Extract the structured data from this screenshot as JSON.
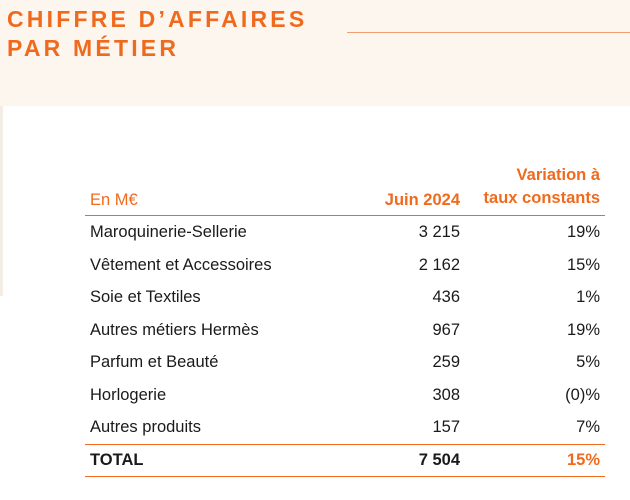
{
  "title": {
    "line1": "CHIFFRE D’AFFAIRES",
    "line2": "PAR MÉTIER"
  },
  "table": {
    "headers": {
      "unit": "En M€",
      "period": "Juin 2024",
      "variation_line1": "Variation à",
      "variation_line2": "taux constants"
    },
    "rows": [
      {
        "label": "Maroquinerie-Sellerie",
        "value": "3 215",
        "variation": "19%"
      },
      {
        "label": "Vêtement et Accessoires",
        "value": "2 162",
        "variation": "15%"
      },
      {
        "label": "Soie et Textiles",
        "value": "436",
        "variation": "1%"
      },
      {
        "label": "Autres métiers Hermès",
        "value": "967",
        "variation": "19%"
      },
      {
        "label": "Parfum et Beauté",
        "value": "259",
        "variation": "5%"
      },
      {
        "label": "Horlogerie",
        "value": "308",
        "variation": "(0)%"
      },
      {
        "label": "Autres produits",
        "value": "157",
        "variation": "7%"
      }
    ],
    "total": {
      "label": "TOTAL",
      "value": "7 504",
      "variation": "15%"
    }
  },
  "colors": {
    "accent": "#f06a1e",
    "header_band": "#fdf6ee",
    "text": "#1a1a1a"
  }
}
